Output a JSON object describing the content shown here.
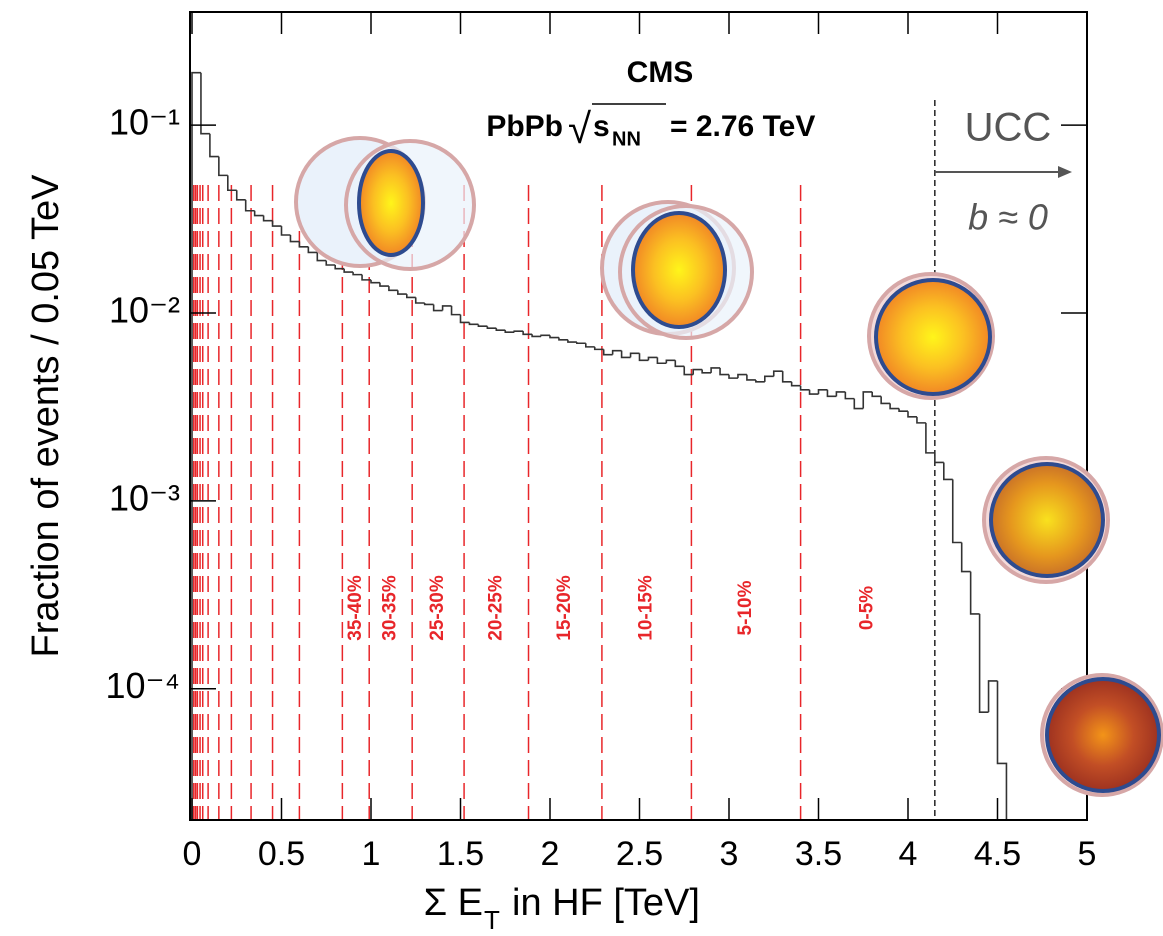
{
  "chart_data": {
    "type": "histogram",
    "title": "CMS",
    "energy_label": {
      "prefix": "PbPb",
      "radical": "√",
      "radicand": "s",
      "subscript": "NN",
      "suffix": "= 2.76 TeV"
    },
    "y_label": "Fraction of events / 0.05 TeV",
    "x_label": {
      "main": "Σ E",
      "subscript": "T",
      "rest": "in HF [TeV]"
    },
    "log_y": true,
    "color": "#333333",
    "bins": [
      0,
      0.05,
      0.1,
      0.15,
      0.2,
      0.25,
      0.3,
      0.35,
      0.4,
      0.45,
      0.5,
      0.55,
      0.6,
      0.65,
      0.7,
      0.75,
      0.8,
      0.85,
      0.9,
      0.95,
      1,
      1.05,
      1.1,
      1.15,
      1.2,
      1.25,
      1.3,
      1.35,
      1.4,
      1.45,
      1.5,
      1.55,
      1.6,
      1.65,
      1.7,
      1.75,
      1.8,
      1.85,
      1.9,
      1.95,
      2,
      2.05,
      2.1,
      2.15,
      2.2,
      2.25,
      2.3,
      2.35,
      2.4,
      2.45,
      2.5,
      2.55,
      2.6,
      2.65,
      2.7,
      2.75,
      2.8,
      2.85,
      2.9,
      2.95,
      3,
      3.05,
      3.1,
      3.15,
      3.2,
      3.25,
      3.3,
      3.35,
      3.4,
      3.45,
      3.5,
      3.55,
      3.6,
      3.65,
      3.7,
      3.75,
      3.8,
      3.85,
      3.9,
      3.95,
      4,
      4.05,
      4.1,
      4.15,
      4.2,
      4.25,
      4.3,
      4.35,
      4.4,
      4.45,
      4.5,
      4.55
    ],
    "values": [
      0.19,
      0.09,
      0.068,
      0.054,
      0.045,
      0.04,
      0.035,
      0.033,
      0.031,
      0.029,
      0.026,
      0.024,
      0.0225,
      0.021,
      0.019,
      0.018,
      0.0172,
      0.0165,
      0.016,
      0.015,
      0.0145,
      0.0139,
      0.0132,
      0.0126,
      0.0121,
      0.0113,
      0.0111,
      0.0103,
      0.0109,
      0.0098,
      0.0089,
      0.0087,
      0.0085,
      0.0083,
      0.0081,
      0.0079,
      0.008,
      0.0077,
      0.0075,
      0.0076,
      0.0074,
      0.0072,
      0.007,
      0.0069,
      0.0066,
      0.0064,
      0.006,
      0.0063,
      0.0058,
      0.0061,
      0.0056,
      0.0058,
      0.0054,
      0.0056,
      0.0052,
      0.0047,
      0.005,
      0.0048,
      0.0051,
      0.0047,
      0.0045,
      0.0047,
      0.0044,
      0.0043,
      0.0046,
      0.0049,
      0.0043,
      0.0041,
      0.0039,
      0.0037,
      0.0039,
      0.0036,
      0.0038,
      0.0035,
      0.0031,
      0.0038,
      0.0036,
      0.0033,
      0.0031,
      0.003,
      0.0028,
      0.0026,
      0.0018,
      0.0016,
      0.0013,
      0.0006,
      0.00042,
      0.00025,
      7.5e-05,
      0.00011,
      4e-05
    ],
    "xlim": [
      0,
      5
    ],
    "ylim": [
      2e-05,
      0.4
    ],
    "xticks": [
      0,
      0.5,
      1,
      1.5,
      2,
      2.5,
      3,
      3.5,
      4,
      4.5,
      5
    ],
    "yticks": [
      {
        "value": 0.0001,
        "label": "10⁻⁴"
      },
      {
        "value": 0.001,
        "label": "10⁻³"
      },
      {
        "value": 0.01,
        "label": "10⁻²"
      },
      {
        "value": 0.1,
        "label": "10⁻¹"
      }
    ],
    "centrality": {
      "color": "#e8262a",
      "boundaries": [
        0.01,
        0.02,
        0.03,
        0.045,
        0.06,
        0.09,
        0.15,
        0.22,
        0.33,
        0.45,
        0.6,
        0.84,
        0.99,
        1.23,
        1.52,
        1.88,
        2.29,
        2.79,
        3.4
      ],
      "labels": [
        "35-40%",
        "30-35%",
        "25-30%",
        "20-25%",
        "15-20%",
        "10-15%",
        "5-10%",
        "0-5%"
      ]
    },
    "ucc": {
      "threshold": 4.15,
      "label": "UCC",
      "impact": "b ≈ 0"
    }
  }
}
